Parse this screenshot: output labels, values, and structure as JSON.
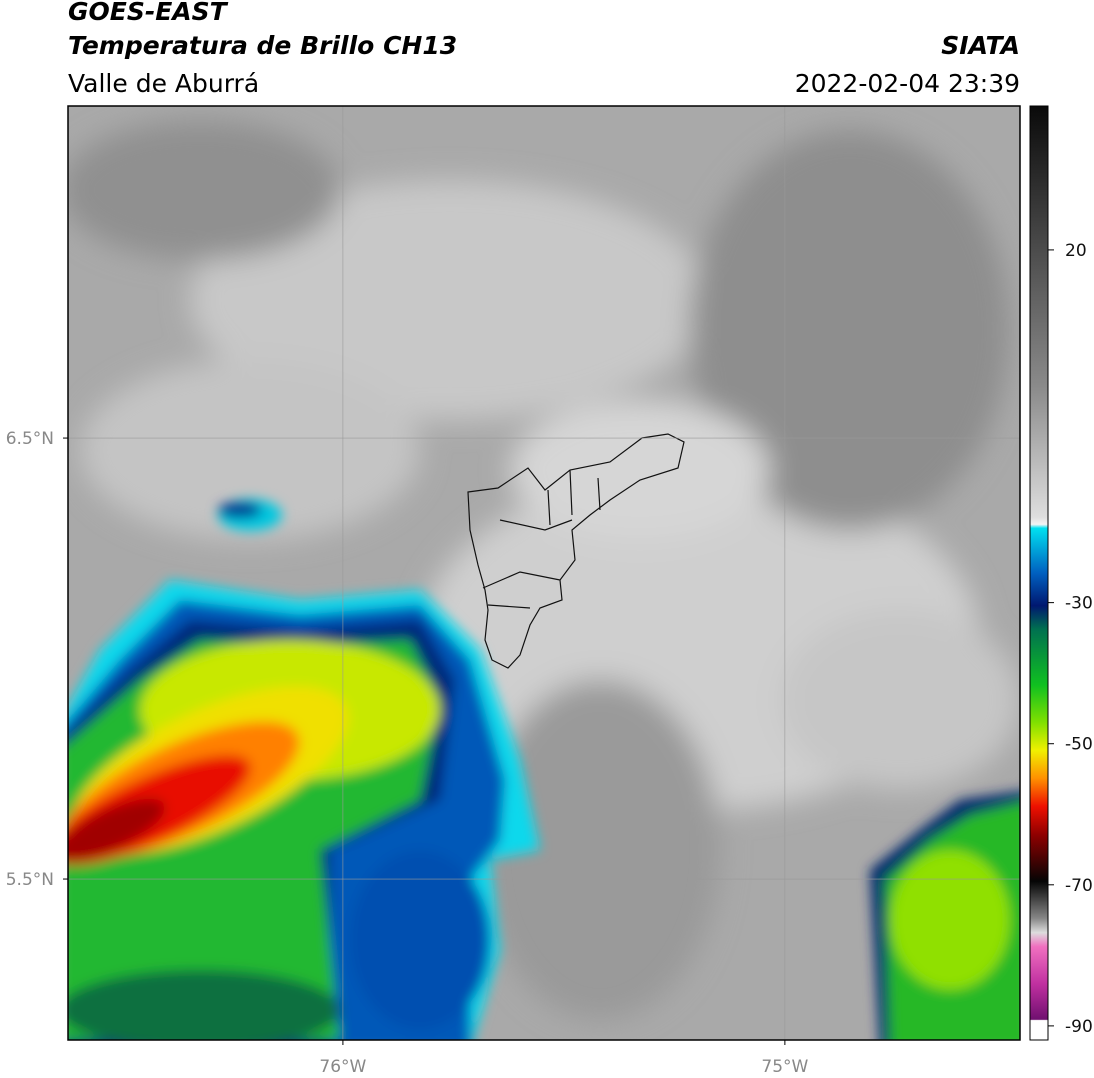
{
  "header": {
    "source": "GOES-EAST",
    "product": "Temperatura de Brillo CH13",
    "region": "Valle de Aburrá",
    "agency": "SIATA",
    "timestamp": "2022-02-04 23:39"
  },
  "map": {
    "xlim": [
      -76.622,
      -74.468
    ],
    "ylim": [
      5.135,
      7.253
    ],
    "xticks": [
      {
        "value": -76,
        "label": "76°W"
      },
      {
        "value": -75,
        "label": "75°W"
      }
    ],
    "yticks": [
      {
        "value": 6.5,
        "label": "6.5°N"
      },
      {
        "value": 5.5,
        "label": "5.5°N"
      }
    ],
    "grid": true
  },
  "colorbar": {
    "lim": [
      -92,
      40.4
    ],
    "ticks": [
      20,
      -30,
      -50,
      -70,
      -90
    ]
  }
}
